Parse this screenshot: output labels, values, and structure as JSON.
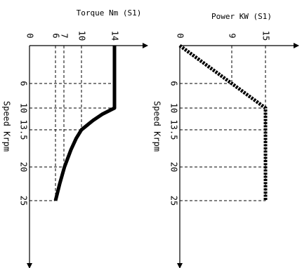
{
  "chart_data": [
    {
      "type": "line",
      "title": "Torque Nm (S1)",
      "xlabel": "Speed Krpm",
      "ylabel": "",
      "x_ticks": [
        "6",
        "10",
        "13.5",
        "20",
        "25"
      ],
      "y_ticks": [
        "0",
        "6",
        "7",
        "10",
        "14"
      ],
      "xlim": [
        0,
        25
      ],
      "ylim": [
        0,
        14
      ],
      "series": [
        {
          "x": [
            0,
            6,
            10,
            11,
            12,
            13.5,
            15,
            17,
            20,
            22.5,
            25
          ],
          "y": [
            14,
            14,
            14,
            12.5,
            11.4,
            10,
            9.1,
            8.2,
            7.1,
            6.5,
            6
          ]
        }
      ],
      "grid": true
    },
    {
      "type": "line",
      "title": "Power KW (S1)",
      "xlabel": "Speed Krpm",
      "ylabel": "",
      "x_ticks": [
        "6",
        "10",
        "13.5",
        "20",
        "25"
      ],
      "y_ticks": [
        "0",
        "9",
        "15"
      ],
      "xlim": [
        0,
        25
      ],
      "ylim": [
        0,
        15
      ],
      "series": [
        {
          "x": [
            0,
            6,
            10,
            13.5,
            20,
            25
          ],
          "y": [
            0,
            9,
            15,
            15,
            15,
            15
          ]
        }
      ],
      "grid": true
    }
  ]
}
